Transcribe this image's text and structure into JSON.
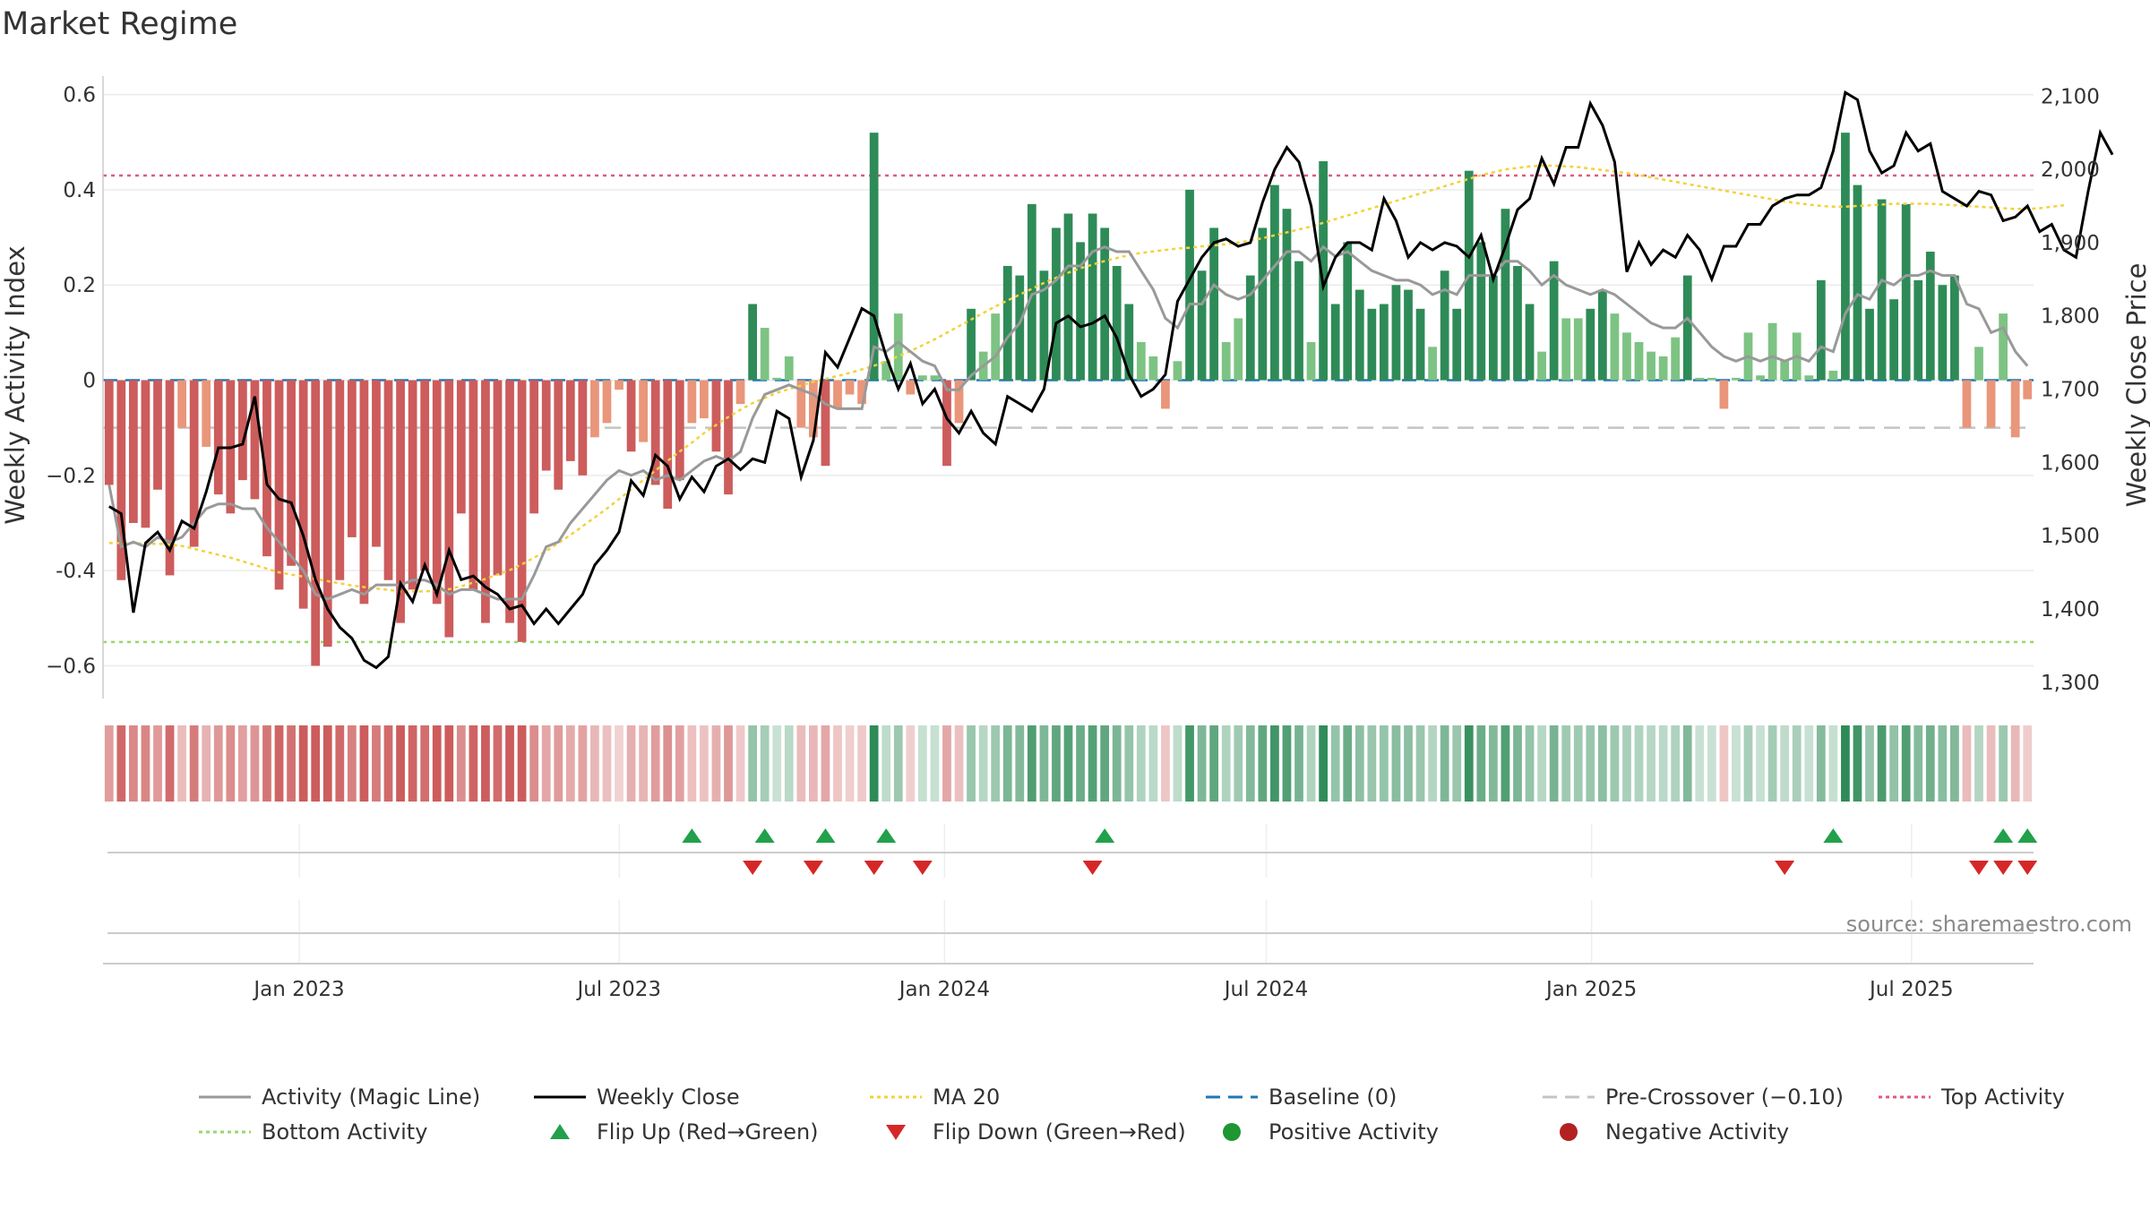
{
  "chart_data": {
    "type": "bar",
    "title": "Market Regime",
    "source": "source: sharemaestro.com",
    "y_left": {
      "label": "Weekly Activity Index",
      "range": [
        -0.65,
        0.62
      ],
      "ticks": [
        -0.6,
        -0.4,
        -0.2,
        0,
        0.2,
        0.4,
        0.6
      ],
      "tick_labels": [
        "−0.6",
        "-0.4",
        "−0.2",
        "0",
        "0.2",
        "0.4",
        "0.6"
      ]
    },
    "y_right": {
      "label": "Weekly Close Price",
      "range": [
        1290,
        2115
      ],
      "ticks": [
        1300,
        1400,
        1500,
        1600,
        1700,
        1800,
        1900,
        2000,
        2100
      ],
      "tick_labels": [
        "1,300",
        "1,400",
        "1,500",
        "1,600",
        "1,700",
        "1,800",
        "1,900",
        "2,000",
        "2,100"
      ]
    },
    "x_axis": {
      "start": "2022-09-12",
      "end": "2025-09-08",
      "ticks": [
        "2023-01-01",
        "2023-07-01",
        "2024-01-01",
        "2024-07-01",
        "2025-01-01",
        "2025-07-01"
      ],
      "tick_labels": [
        "Jan 2023",
        "Jul 2023",
        "Jan 2024",
        "Jul 2024",
        "Jan 2025",
        "Jul 2025"
      ]
    },
    "reference_lines": {
      "top_activity": 0.43,
      "bottom_activity": -0.55,
      "baseline": 0,
      "pre_crossover": -0.1
    },
    "weekly_activity": [
      -0.22,
      -0.42,
      -0.3,
      -0.31,
      -0.23,
      -0.41,
      -0.1,
      -0.35,
      -0.14,
      -0.24,
      -0.28,
      -0.21,
      -0.25,
      -0.37,
      -0.44,
      -0.39,
      -0.48,
      -0.6,
      -0.56,
      -0.42,
      -0.33,
      -0.47,
      -0.35,
      -0.42,
      -0.51,
      -0.44,
      -0.4,
      -0.47,
      -0.54,
      -0.28,
      -0.44,
      -0.51,
      -0.41,
      -0.51,
      -0.55,
      -0.28,
      -0.19,
      -0.23,
      -0.17,
      -0.2,
      -0.12,
      -0.09,
      -0.02,
      -0.15,
      -0.13,
      -0.22,
      -0.27,
      -0.21,
      -0.09,
      -0.08,
      -0.15,
      -0.24,
      -0.05,
      0.16,
      0.11,
      0.005,
      0.05,
      -0.1,
      -0.12,
      -0.18,
      -0.06,
      -0.03,
      -0.05,
      0.52,
      0.04,
      0.14,
      -0.03,
      0.01,
      0.01,
      -0.18,
      -0.09,
      0.15,
      0.06,
      0.14,
      0.24,
      0.22,
      0.37,
      0.23,
      0.32,
      0.35,
      0.29,
      0.35,
      0.32,
      0.24,
      0.16,
      0.08,
      0.05,
      -0.06,
      0.04,
      0.4,
      0.23,
      0.32,
      0.08,
      0.13,
      0.22,
      0.32,
      0.41,
      0.36,
      0.25,
      0.08,
      0.46,
      0.16,
      0.29,
      0.19,
      0.15,
      0.16,
      0.2,
      0.19,
      0.15,
      0.07,
      0.23,
      0.15,
      0.44,
      0.29,
      0.22,
      0.36,
      0.24,
      0.16,
      0.06,
      0.25,
      0.13,
      0.13,
      0.15,
      0.19,
      0.14,
      0.1,
      0.08,
      0.06,
      0.05,
      0.09,
      0.22,
      0.005,
      0.005,
      -0.06,
      0.005,
      0.1,
      0.01,
      0.12,
      0.04,
      0.1,
      0.01,
      0.21,
      0.02,
      0.52,
      0.41,
      0.15,
      0.38,
      0.17,
      0.37,
      0.21,
      0.27,
      0.2,
      0.22,
      -0.1,
      0.07,
      -0.1,
      0.14,
      -0.12,
      -0.04
    ],
    "activity_colors": {
      "strong_positive": "#2E8B57",
      "mild_positive": "#7DC383",
      "strong_negative": "#CD5C5C",
      "mild_negative": "#E9967A"
    },
    "magic_line": [
      -0.22,
      -0.35,
      -0.34,
      -0.35,
      -0.33,
      -0.34,
      -0.33,
      -0.3,
      -0.27,
      -0.26,
      -0.26,
      -0.27,
      -0.27,
      -0.31,
      -0.34,
      -0.37,
      -0.4,
      -0.45,
      -0.46,
      -0.45,
      -0.44,
      -0.45,
      -0.43,
      -0.43,
      -0.43,
      -0.42,
      -0.42,
      -0.43,
      -0.45,
      -0.44,
      -0.44,
      -0.45,
      -0.46,
      -0.46,
      -0.46,
      -0.41,
      -0.35,
      -0.34,
      -0.3,
      -0.27,
      -0.24,
      -0.21,
      -0.19,
      -0.2,
      -0.19,
      -0.21,
      -0.2,
      -0.21,
      -0.19,
      -0.17,
      -0.16,
      -0.17,
      -0.15,
      -0.08,
      -0.03,
      -0.02,
      -0.01,
      -0.02,
      -0.03,
      -0.05,
      -0.06,
      -0.06,
      -0.06,
      0.07,
      0.06,
      0.08,
      0.06,
      0.04,
      0.03,
      -0.02,
      -0.02,
      0.01,
      0.03,
      0.05,
      0.09,
      0.12,
      0.18,
      0.19,
      0.21,
      0.24,
      0.24,
      0.27,
      0.28,
      0.27,
      0.27,
      0.23,
      0.19,
      0.13,
      0.11,
      0.16,
      0.16,
      0.2,
      0.18,
      0.17,
      0.18,
      0.21,
      0.24,
      0.27,
      0.27,
      0.25,
      0.28,
      0.26,
      0.27,
      0.25,
      0.23,
      0.22,
      0.21,
      0.21,
      0.2,
      0.18,
      0.19,
      0.18,
      0.22,
      0.22,
      0.22,
      0.25,
      0.25,
      0.23,
      0.2,
      0.22,
      0.2,
      0.19,
      0.18,
      0.19,
      0.18,
      0.16,
      0.14,
      0.12,
      0.11,
      0.11,
      0.13,
      0.1,
      0.07,
      0.05,
      0.04,
      0.05,
      0.04,
      0.05,
      0.04,
      0.05,
      0.04,
      0.07,
      0.06,
      0.14,
      0.18,
      0.17,
      0.21,
      0.2,
      0.22,
      0.22,
      0.23,
      0.22,
      0.22,
      0.16,
      0.15,
      0.1,
      0.11,
      0.06,
      0.03
    ],
    "weekly_close": [
      1540,
      1530,
      1395,
      1490,
      1505,
      1480,
      1520,
      1510,
      1560,
      1620,
      1620,
      1625,
      1690,
      1570,
      1550,
      1545,
      1500,
      1440,
      1400,
      1375,
      1360,
      1330,
      1320,
      1335,
      1435,
      1410,
      1460,
      1420,
      1480,
      1440,
      1445,
      1430,
      1420,
      1400,
      1405,
      1380,
      1400,
      1380,
      1400,
      1420,
      1460,
      1480,
      1505,
      1575,
      1555,
      1610,
      1595,
      1550,
      1580,
      1560,
      1595,
      1605,
      1590,
      1605,
      1600,
      1670,
      1660,
      1580,
      1630,
      1750,
      1730,
      1770,
      1810,
      1800,
      1745,
      1700,
      1735,
      1680,
      1700,
      1660,
      1640,
      1670,
      1640,
      1625,
      1690,
      1680,
      1670,
      1700,
      1790,
      1800,
      1785,
      1790,
      1800,
      1770,
      1720,
      1690,
      1700,
      1720,
      1820,
      1850,
      1880,
      1900,
      1905,
      1895,
      1900,
      1955,
      2000,
      2030,
      2010,
      1950,
      1840,
      1880,
      1900,
      1900,
      1890,
      1960,
      1930,
      1880,
      1900,
      1890,
      1900,
      1895,
      1880,
      1910,
      1850,
      1895,
      1945,
      1960,
      2015,
      1980,
      2030,
      2030,
      2090,
      2060,
      2010,
      1860,
      1900,
      1870,
      1890,
      1880,
      1910,
      1890,
      1850,
      1895,
      1895,
      1925,
      1925,
      1950,
      1960,
      1965,
      1965,
      1975,
      2025,
      2105,
      2095,
      2025,
      1995,
      2005,
      2050,
      2025,
      2035,
      1970,
      1960,
      1950,
      1970,
      1965,
      1930,
      1935,
      1950,
      1915,
      1925,
      1890,
      1880,
      1970,
      2050,
      2020
    ],
    "ma20": [
      1490,
      1490,
      1490,
      1489,
      1489,
      1488,
      1486,
      1482,
      1478,
      1474,
      1470,
      1465,
      1460,
      1455,
      1450,
      1447,
      1444,
      1441,
      1438,
      1435,
      1432,
      1430,
      1428,
      1426,
      1424,
      1424,
      1424,
      1425,
      1427,
      1431,
      1436,
      1441,
      1447,
      1453,
      1461,
      1470,
      1479,
      1490,
      1501,
      1513,
      1525,
      1537,
      1550,
      1563,
      1576,
      1589,
      1602,
      1615,
      1627,
      1640,
      1651,
      1662,
      1672,
      1681,
      1688,
      1695,
      1700,
      1705,
      1710,
      1714,
      1718,
      1722,
      1727,
      1732,
      1738,
      1745,
      1752,
      1760,
      1768,
      1777,
      1786,
      1795,
      1804,
      1813,
      1821,
      1829,
      1837,
      1845,
      1852,
      1859,
      1865,
      1870,
      1875,
      1879,
      1883,
      1886,
      1888,
      1890,
      1892,
      1893,
      1895,
      1896,
      1898,
      1900,
      1903,
      1906,
      1910,
      1914,
      1918,
      1922,
      1927,
      1932,
      1937,
      1942,
      1947,
      1952,
      1957,
      1962,
      1967,
      1972,
      1977,
      1982,
      1987,
      1992,
      1996,
      2000,
      2002,
      2004,
      2005,
      2005,
      2004,
      2003,
      2001,
      1999,
      1997,
      1995,
      1992,
      1989,
      1986,
      1983,
      1980,
      1977,
      1974,
      1971,
      1968,
      1965,
      1962,
      1959,
      1956,
      1954,
      1952,
      1950,
      1949,
      1949,
      1950,
      1951,
      1952,
      1953,
      1953,
      1953,
      1953,
      1952,
      1951,
      1950,
      1949,
      1948,
      1947,
      1946,
      1946,
      1947,
      1949,
      1951
    ],
    "flips_up_weeks": [
      48,
      54,
      59,
      64,
      82,
      142,
      156,
      158
    ],
    "flips_down_weeks": [
      53,
      58,
      63,
      67,
      81,
      138,
      154,
      156,
      158
    ],
    "legend": [
      {
        "label": "Activity (Magic Line)",
        "color": "#999999",
        "kind": "line"
      },
      {
        "label": "Weekly Close",
        "color": "#000000",
        "kind": "line"
      },
      {
        "label": "MA 20",
        "color": "#F2D23C",
        "kind": "dotted"
      },
      {
        "label": "Baseline (0)",
        "color": "#1F77B4",
        "kind": "dashed"
      },
      {
        "label": "Pre-Crossover (−0.10)",
        "color": "#C4C4C4",
        "kind": "dashed"
      },
      {
        "label": "Top Activity",
        "color": "#E05A7C",
        "kind": "dotted"
      },
      {
        "label": "Bottom Activity",
        "color": "#97D86A",
        "kind": "dotted"
      },
      {
        "label": "Flip Up (Red→Green)",
        "color": "#22A04B",
        "kind": "triangle-up"
      },
      {
        "label": "Flip Down (Green→Red)",
        "color": "#D62728",
        "kind": "triangle-down"
      },
      {
        "label": "Positive Activity",
        "color": "#1E9632",
        "kind": "dot"
      },
      {
        "label": "Negative Activity",
        "color": "#B22222",
        "kind": "dot"
      }
    ]
  }
}
